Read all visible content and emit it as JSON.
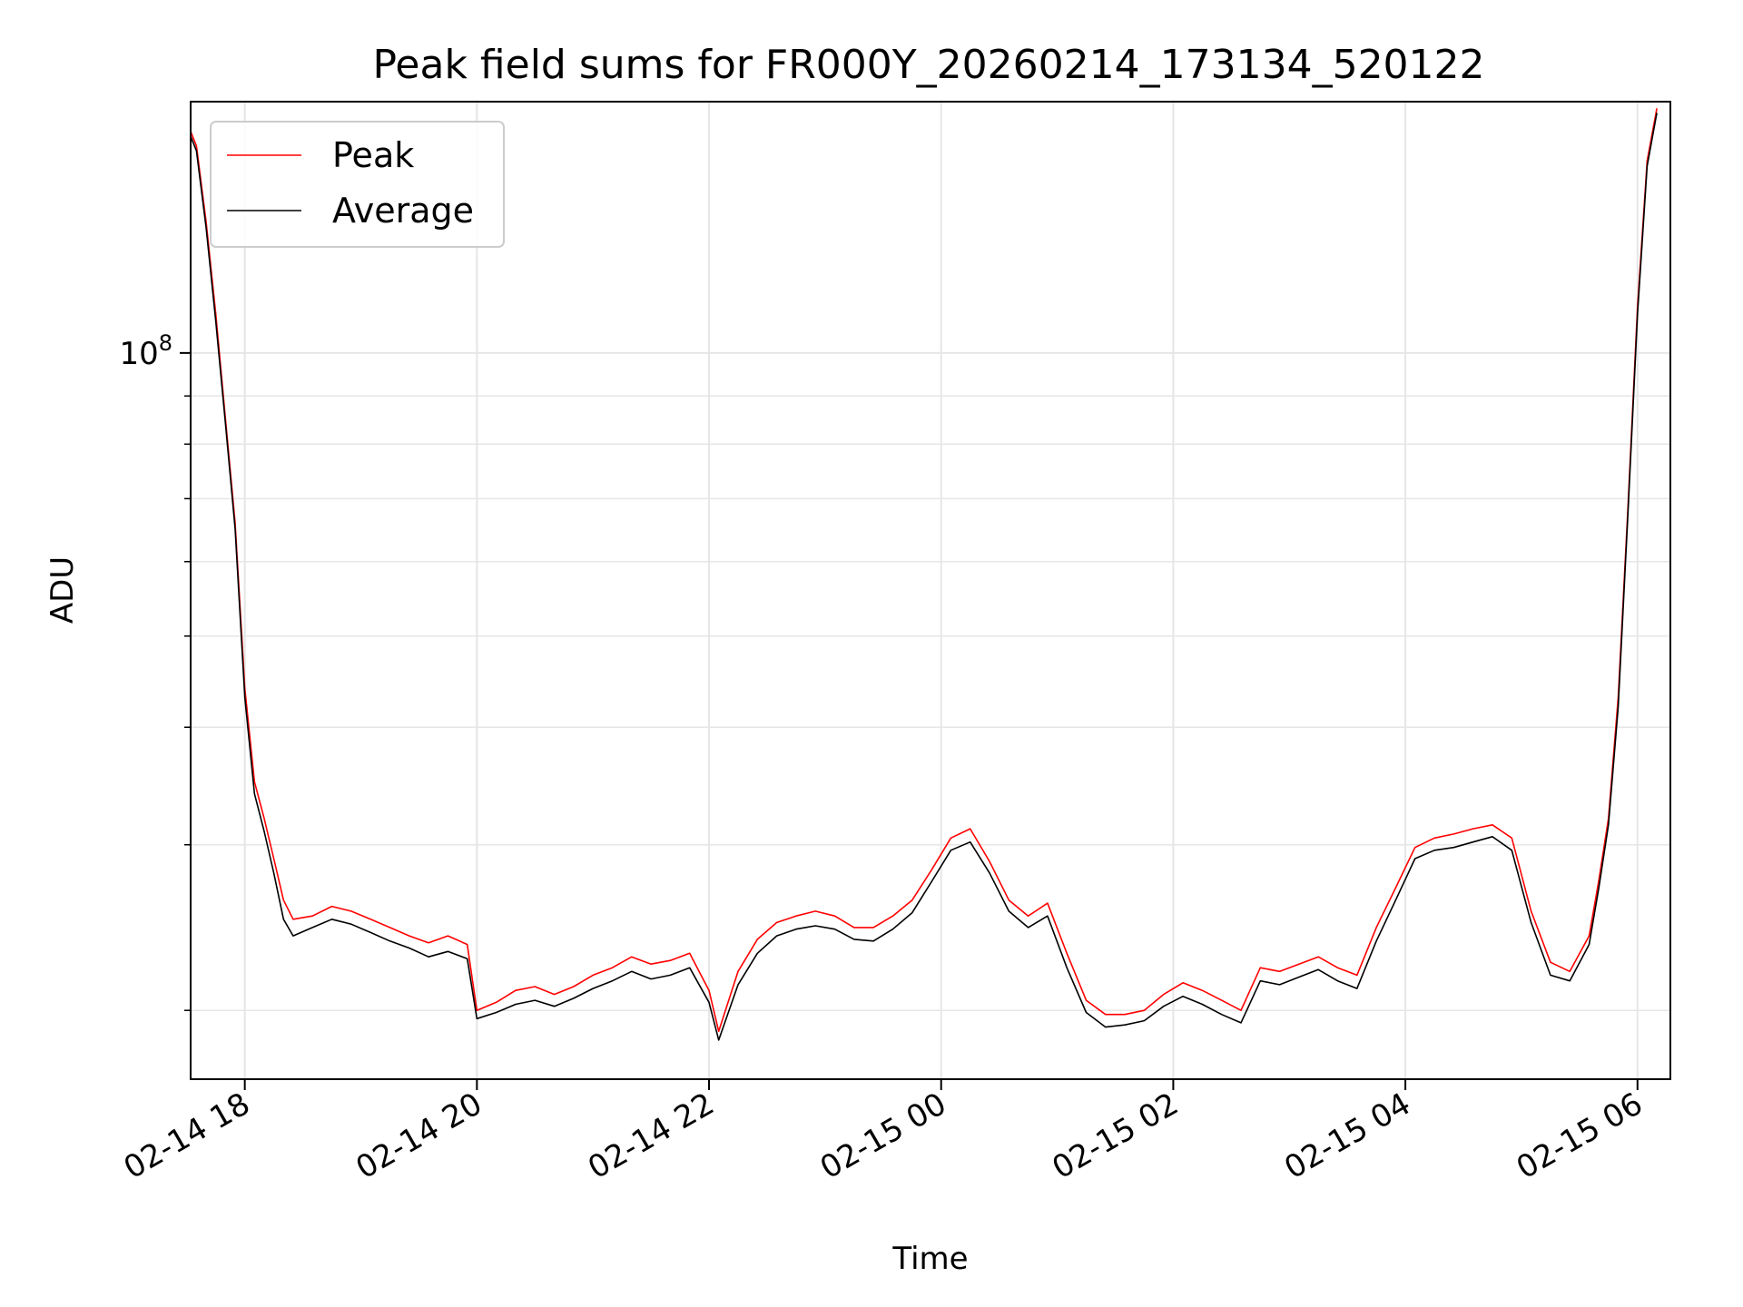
{
  "chart_data": {
    "type": "line",
    "title": "Peak field sums for FR000Y_20260214_173134_520122",
    "xlabel": "Time",
    "ylabel": "ADU",
    "yscale": "log",
    "grid": true,
    "legend": "top-left",
    "xlim": [
      "2026-02-14 17:32",
      "2026-02-15 06:17"
    ],
    "ylim": [
      16900000.0,
      185000000.0
    ],
    "x_ticks": [
      {
        "value": "2026-02-14 18:00",
        "label": "02-14 18"
      },
      {
        "value": "2026-02-14 20:00",
        "label": "02-14 20"
      },
      {
        "value": "2026-02-14 22:00",
        "label": "02-14 22"
      },
      {
        "value": "2026-02-15 00:00",
        "label": "02-15 00"
      },
      {
        "value": "2026-02-15 02:00",
        "label": "02-15 02"
      },
      {
        "value": "2026-02-15 04:00",
        "label": "02-15 04"
      },
      {
        "value": "2026-02-15 06:00",
        "label": "02-15 06"
      }
    ],
    "y_major_ticks": [
      {
        "value": 100000000,
        "base": "10",
        "exp": "8"
      }
    ],
    "y_minor_ticks": [
      20000000,
      30000000,
      40000000,
      50000000,
      60000000,
      70000000,
      80000000,
      90000000
    ],
    "series": [
      {
        "name": "Peak",
        "color": "#ff0000",
        "points": [
          [
            "2026-02-14 17:32",
            172000000.0
          ],
          [
            "2026-02-14 17:35",
            166000000.0
          ],
          [
            "2026-02-14 17:40",
            138000000.0
          ],
          [
            "2026-02-14 17:45",
            110000000.0
          ],
          [
            "2026-02-14 17:50",
            85000000.0
          ],
          [
            "2026-02-14 17:55",
            66000000.0
          ],
          [
            "2026-02-14 18:00",
            44000000.0
          ],
          [
            "2026-02-14 18:05",
            35000000.0
          ],
          [
            "2026-02-14 18:10",
            32000000.0
          ],
          [
            "2026-02-14 18:15",
            29000000.0
          ],
          [
            "2026-02-14 18:20",
            26200000.0
          ],
          [
            "2026-02-14 18:25",
            25000000.0
          ],
          [
            "2026-02-14 18:35",
            25200000.0
          ],
          [
            "2026-02-14 18:45",
            25800000.0
          ],
          [
            "2026-02-14 18:55",
            25500000.0
          ],
          [
            "2026-02-14 19:05",
            25000000.0
          ],
          [
            "2026-02-14 19:15",
            24500000.0
          ],
          [
            "2026-02-14 19:25",
            24000000.0
          ],
          [
            "2026-02-14 19:35",
            23600000.0
          ],
          [
            "2026-02-14 19:45",
            24000000.0
          ],
          [
            "2026-02-14 19:55",
            23500000.0
          ],
          [
            "2026-02-14 20:00",
            20000000.0
          ],
          [
            "2026-02-14 20:10",
            20400000.0
          ],
          [
            "2026-02-14 20:20",
            21000000.0
          ],
          [
            "2026-02-14 20:30",
            21200000.0
          ],
          [
            "2026-02-14 20:40",
            20800000.0
          ],
          [
            "2026-02-14 20:50",
            21200000.0
          ],
          [
            "2026-02-14 21:00",
            21800000.0
          ],
          [
            "2026-02-14 21:10",
            22200000.0
          ],
          [
            "2026-02-14 21:20",
            22800000.0
          ],
          [
            "2026-02-14 21:30",
            22400000.0
          ],
          [
            "2026-02-14 21:40",
            22600000.0
          ],
          [
            "2026-02-14 21:50",
            23000000.0
          ],
          [
            "2026-02-14 22:00",
            21000000.0
          ],
          [
            "2026-02-14 22:05",
            19000000.0
          ],
          [
            "2026-02-14 22:15",
            22000000.0
          ],
          [
            "2026-02-14 22:25",
            23800000.0
          ],
          [
            "2026-02-14 22:35",
            24800000.0
          ],
          [
            "2026-02-14 22:45",
            25200000.0
          ],
          [
            "2026-02-14 22:55",
            25500000.0
          ],
          [
            "2026-02-14 23:05",
            25200000.0
          ],
          [
            "2026-02-14 23:15",
            24500000.0
          ],
          [
            "2026-02-14 23:25",
            24500000.0
          ],
          [
            "2026-02-14 23:35",
            25200000.0
          ],
          [
            "2026-02-14 23:45",
            26200000.0
          ],
          [
            "2026-02-14 23:55",
            28200000.0
          ],
          [
            "2026-02-15 00:05",
            30500000.0
          ],
          [
            "2026-02-15 00:15",
            31200000.0
          ],
          [
            "2026-02-15 00:25",
            28800000.0
          ],
          [
            "2026-02-15 00:35",
            26200000.0
          ],
          [
            "2026-02-15 00:45",
            25200000.0
          ],
          [
            "2026-02-15 00:55",
            26000000.0
          ],
          [
            "2026-02-15 01:05",
            23000000.0
          ],
          [
            "2026-02-15 01:15",
            20500000.0
          ],
          [
            "2026-02-15 01:25",
            19800000.0
          ],
          [
            "2026-02-15 01:35",
            19800000.0
          ],
          [
            "2026-02-15 01:45",
            20000000.0
          ],
          [
            "2026-02-15 01:55",
            20800000.0
          ],
          [
            "2026-02-15 02:05",
            21400000.0
          ],
          [
            "2026-02-15 02:15",
            21000000.0
          ],
          [
            "2026-02-15 02:25",
            20500000.0
          ],
          [
            "2026-02-15 02:35",
            20000000.0
          ],
          [
            "2026-02-15 02:45",
            22200000.0
          ],
          [
            "2026-02-15 02:55",
            22000000.0
          ],
          [
            "2026-02-15 03:05",
            22400000.0
          ],
          [
            "2026-02-15 03:15",
            22800000.0
          ],
          [
            "2026-02-15 03:25",
            22200000.0
          ],
          [
            "2026-02-15 03:35",
            21800000.0
          ],
          [
            "2026-02-15 03:45",
            24500000.0
          ],
          [
            "2026-02-15 03:55",
            27000000.0
          ],
          [
            "2026-02-15 04:05",
            29800000.0
          ],
          [
            "2026-02-15 04:15",
            30500000.0
          ],
          [
            "2026-02-15 04:25",
            30800000.0
          ],
          [
            "2026-02-15 04:35",
            31200000.0
          ],
          [
            "2026-02-15 04:45",
            31500000.0
          ],
          [
            "2026-02-15 04:55",
            30500000.0
          ],
          [
            "2026-02-15 05:05",
            25500000.0
          ],
          [
            "2026-02-15 05:15",
            22500000.0
          ],
          [
            "2026-02-15 05:25",
            22000000.0
          ],
          [
            "2026-02-15 05:35",
            24000000.0
          ],
          [
            "2026-02-15 05:40",
            27500000.0
          ],
          [
            "2026-02-15 05:45",
            32000000.0
          ],
          [
            "2026-02-15 05:50",
            43000000.0
          ],
          [
            "2026-02-15 05:55",
            68000000.0
          ],
          [
            "2026-02-15 06:00",
            112000000.0
          ],
          [
            "2026-02-15 06:05",
            160000000.0
          ],
          [
            "2026-02-15 06:10",
            182000000.0
          ]
        ]
      },
      {
        "name": "Average",
        "color": "#000000",
        "points": [
          [
            "2026-02-14 17:32",
            170000000.0
          ],
          [
            "2026-02-14 17:35",
            164000000.0
          ],
          [
            "2026-02-14 17:40",
            136000000.0
          ],
          [
            "2026-02-14 17:45",
            108000000.0
          ],
          [
            "2026-02-14 17:50",
            84000000.0
          ],
          [
            "2026-02-14 17:55",
            65000000.0
          ],
          [
            "2026-02-14 18:00",
            43000000.0
          ],
          [
            "2026-02-14 18:05",
            34000000.0
          ],
          [
            "2026-02-14 18:10",
            31000000.0
          ],
          [
            "2026-02-14 18:15",
            28000000.0
          ],
          [
            "2026-02-14 18:20",
            25000000.0
          ],
          [
            "2026-02-14 18:25",
            24000000.0
          ],
          [
            "2026-02-14 18:35",
            24500000.0
          ],
          [
            "2026-02-14 18:45",
            25000000.0
          ],
          [
            "2026-02-14 18:55",
            24700000.0
          ],
          [
            "2026-02-14 19:05",
            24200000.0
          ],
          [
            "2026-02-14 19:15",
            23700000.0
          ],
          [
            "2026-02-14 19:25",
            23300000.0
          ],
          [
            "2026-02-14 19:35",
            22800000.0
          ],
          [
            "2026-02-14 19:45",
            23100000.0
          ],
          [
            "2026-02-14 19:55",
            22700000.0
          ],
          [
            "2026-02-14 20:00",
            19600000.0
          ],
          [
            "2026-02-14 20:10",
            19900000.0
          ],
          [
            "2026-02-14 20:20",
            20300000.0
          ],
          [
            "2026-02-14 20:30",
            20500000.0
          ],
          [
            "2026-02-14 20:40",
            20200000.0
          ],
          [
            "2026-02-14 20:50",
            20600000.0
          ],
          [
            "2026-02-14 21:00",
            21100000.0
          ],
          [
            "2026-02-14 21:10",
            21500000.0
          ],
          [
            "2026-02-14 21:20",
            22000000.0
          ],
          [
            "2026-02-14 21:30",
            21600000.0
          ],
          [
            "2026-02-14 21:40",
            21800000.0
          ],
          [
            "2026-02-14 21:50",
            22200000.0
          ],
          [
            "2026-02-14 22:00",
            20400000.0
          ],
          [
            "2026-02-14 22:05",
            18600000.0
          ],
          [
            "2026-02-14 22:15",
            21300000.0
          ],
          [
            "2026-02-14 22:25",
            23000000.0
          ],
          [
            "2026-02-14 22:35",
            24000000.0
          ],
          [
            "2026-02-14 22:45",
            24400000.0
          ],
          [
            "2026-02-14 22:55",
            24600000.0
          ],
          [
            "2026-02-14 23:05",
            24400000.0
          ],
          [
            "2026-02-14 23:15",
            23800000.0
          ],
          [
            "2026-02-14 23:25",
            23700000.0
          ],
          [
            "2026-02-14 23:35",
            24400000.0
          ],
          [
            "2026-02-14 23:45",
            25400000.0
          ],
          [
            "2026-02-14 23:55",
            27400000.0
          ],
          [
            "2026-02-15 00:05",
            29600000.0
          ],
          [
            "2026-02-15 00:15",
            30200000.0
          ],
          [
            "2026-02-15 00:25",
            28000000.0
          ],
          [
            "2026-02-15 00:35",
            25500000.0
          ],
          [
            "2026-02-15 00:45",
            24500000.0
          ],
          [
            "2026-02-15 00:55",
            25200000.0
          ],
          [
            "2026-02-15 01:05",
            22200000.0
          ],
          [
            "2026-02-15 01:15",
            19900000.0
          ],
          [
            "2026-02-15 01:25",
            19200000.0
          ],
          [
            "2026-02-15 01:35",
            19300000.0
          ],
          [
            "2026-02-15 01:45",
            19500000.0
          ],
          [
            "2026-02-15 01:55",
            20200000.0
          ],
          [
            "2026-02-15 02:05",
            20700000.0
          ],
          [
            "2026-02-15 02:15",
            20300000.0
          ],
          [
            "2026-02-15 02:25",
            19800000.0
          ],
          [
            "2026-02-15 02:35",
            19400000.0
          ],
          [
            "2026-02-15 02:45",
            21500000.0
          ],
          [
            "2026-02-15 02:55",
            21300000.0
          ],
          [
            "2026-02-15 03:05",
            21700000.0
          ],
          [
            "2026-02-15 03:15",
            22100000.0
          ],
          [
            "2026-02-15 03:25",
            21500000.0
          ],
          [
            "2026-02-15 03:35",
            21100000.0
          ],
          [
            "2026-02-15 03:45",
            23700000.0
          ],
          [
            "2026-02-15 03:55",
            26200000.0
          ],
          [
            "2026-02-15 04:05",
            29000000.0
          ],
          [
            "2026-02-15 04:15",
            29600000.0
          ],
          [
            "2026-02-15 04:25",
            29800000.0
          ],
          [
            "2026-02-15 04:35",
            30200000.0
          ],
          [
            "2026-02-15 04:45",
            30600000.0
          ],
          [
            "2026-02-15 04:55",
            29600000.0
          ],
          [
            "2026-02-15 05:05",
            24800000.0
          ],
          [
            "2026-02-15 05:15",
            21800000.0
          ],
          [
            "2026-02-15 05:25",
            21500000.0
          ],
          [
            "2026-02-15 05:35",
            23500000.0
          ],
          [
            "2026-02-15 05:40",
            27000000.0
          ],
          [
            "2026-02-15 05:45",
            31500000.0
          ],
          [
            "2026-02-15 05:50",
            42000000.0
          ],
          [
            "2026-02-15 05:55",
            67000000.0
          ],
          [
            "2026-02-15 06:00",
            110000000.0
          ],
          [
            "2026-02-15 06:05",
            158000000.0
          ],
          [
            "2026-02-15 06:10",
            180000000.0
          ]
        ]
      }
    ]
  }
}
